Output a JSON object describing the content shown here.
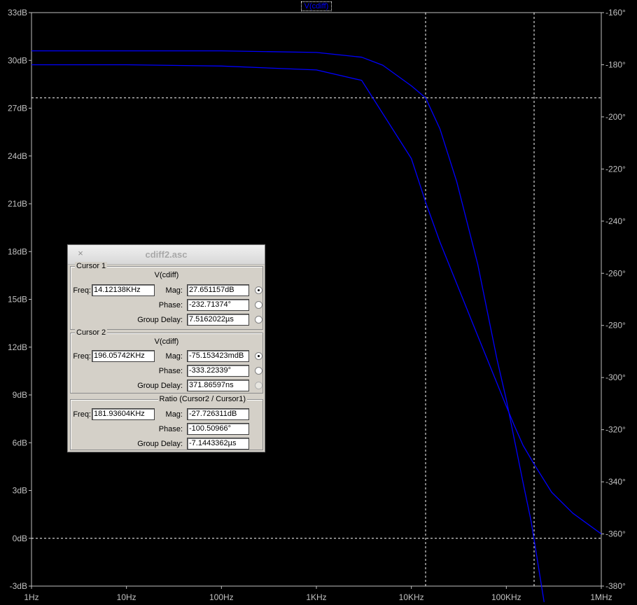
{
  "chart_data": {
    "type": "line",
    "title": "",
    "xscale": "log",
    "xlim": [
      1,
      1000000
    ],
    "ylim_left": [
      -3,
      33
    ],
    "ylim_right": [
      -380,
      -160
    ],
    "x_ticks": [
      "1Hz",
      "10Hz",
      "100Hz",
      "1KHz",
      "10KHz",
      "100KHz",
      "1MHz"
    ],
    "y_ticks_left": [
      "-3dB",
      "0dB",
      "3dB",
      "6dB",
      "9dB",
      "12dB",
      "15dB",
      "18dB",
      "21dB",
      "24dB",
      "27dB",
      "30dB",
      "33dB"
    ],
    "y_ticks_right": [
      "-380°",
      "-360°",
      "-340°",
      "-320°",
      "-300°",
      "-280°",
      "-260°",
      "-240°",
      "-220°",
      "-200°",
      "-180°",
      "-160°"
    ],
    "legend": "V(cdiff)",
    "series": [
      {
        "role": "magnitude",
        "color": "#0000ff",
        "x": [
          1,
          10,
          100,
          1000,
          3000,
          5000,
          10000,
          14121,
          20000,
          30000,
          50000,
          80000,
          100000,
          150000,
          181936,
          196057,
          250000
        ],
        "y": [
          30.6,
          30.6,
          30.6,
          30.5,
          30.2,
          29.7,
          28.4,
          27.65,
          25.7,
          22.4,
          17.2,
          11.2,
          8.7,
          3.5,
          1.1,
          -0.08,
          -4.0
        ]
      },
      {
        "role": "phase",
        "color": "#0000ff",
        "x": [
          1,
          10,
          100,
          1000,
          3000,
          10000,
          14121,
          20000,
          50000,
          100000,
          120000,
          150000,
          196057,
          300000,
          500000,
          1000000
        ],
        "y_deg": [
          -180,
          -180,
          -180.5,
          -182,
          -186,
          -216,
          -232.7,
          -248,
          -284,
          -311,
          -318,
          -326,
          -333.2,
          -344,
          -352,
          -360
        ]
      }
    ],
    "cursors": [
      {
        "x": 14121.38,
        "y_left": 27.65
      },
      {
        "x": 196057.42,
        "y_left": 0
      }
    ]
  },
  "dialog": {
    "title": "cdiff2.asc",
    "close_glyph": "×",
    "cursor1": {
      "label": "Cursor 1",
      "signal": "V(cdiff)",
      "freq_label": "Freq:",
      "freq": "14.12138KHz",
      "mag_label": "Mag:",
      "mag": "27.651157dB",
      "phase_label": "Phase:",
      "phase": "-232.71374°",
      "gd_label": "Group Delay:",
      "gd": "7.5162022µs"
    },
    "cursor2": {
      "label": "Cursor 2",
      "signal": "V(cdiff)",
      "freq_label": "Freq:",
      "freq": "196.05742KHz",
      "mag_label": "Mag:",
      "mag": "-75.153423mdB",
      "phase_label": "Phase:",
      "phase": "-333.22339°",
      "gd_label": "Group Delay:",
      "gd": "371.86597ns"
    },
    "ratio": {
      "label": "Ratio (Cursor2 / Cursor1)",
      "freq_label": "Freq:",
      "freq": "181.93604KHz",
      "mag_label": "Mag:",
      "mag": "-27.726311dB",
      "phase_label": "Phase:",
      "phase": "-100.50966°",
      "gd_label": "Group Delay:",
      "gd": "-7.1443362µs"
    }
  }
}
